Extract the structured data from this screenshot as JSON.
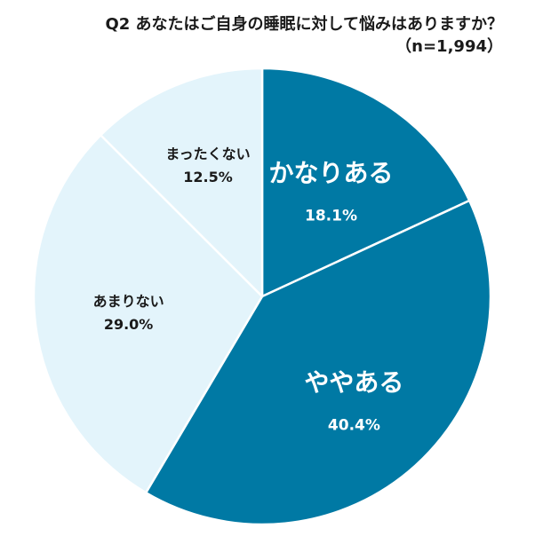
{
  "chart_data": {
    "type": "pie",
    "title": "Q2 あなたはご自身の睡眠に対して悩みはありますか？",
    "subtitle": "（n=1,994）",
    "slices": [
      {
        "label": "かなりある",
        "value": 18.1,
        "value_label": "18.1%",
        "color": "#0079a4",
        "text_color": "#ffffff"
      },
      {
        "label": "ややある",
        "value": 40.4,
        "value_label": "40.4%",
        "color": "#0079a4",
        "text_color": "#ffffff"
      },
      {
        "label": "あまりない",
        "value": 29.0,
        "value_label": "29.0%",
        "color": "#e3f4fb",
        "text_color": "#1a1a1a"
      },
      {
        "label": "まったくない",
        "value": 12.5,
        "value_label": "12.5%",
        "color": "#e3f4fb",
        "text_color": "#1a1a1a"
      }
    ],
    "start_angle": "12 o'clock",
    "direction": "clockwise",
    "legend": "none"
  }
}
